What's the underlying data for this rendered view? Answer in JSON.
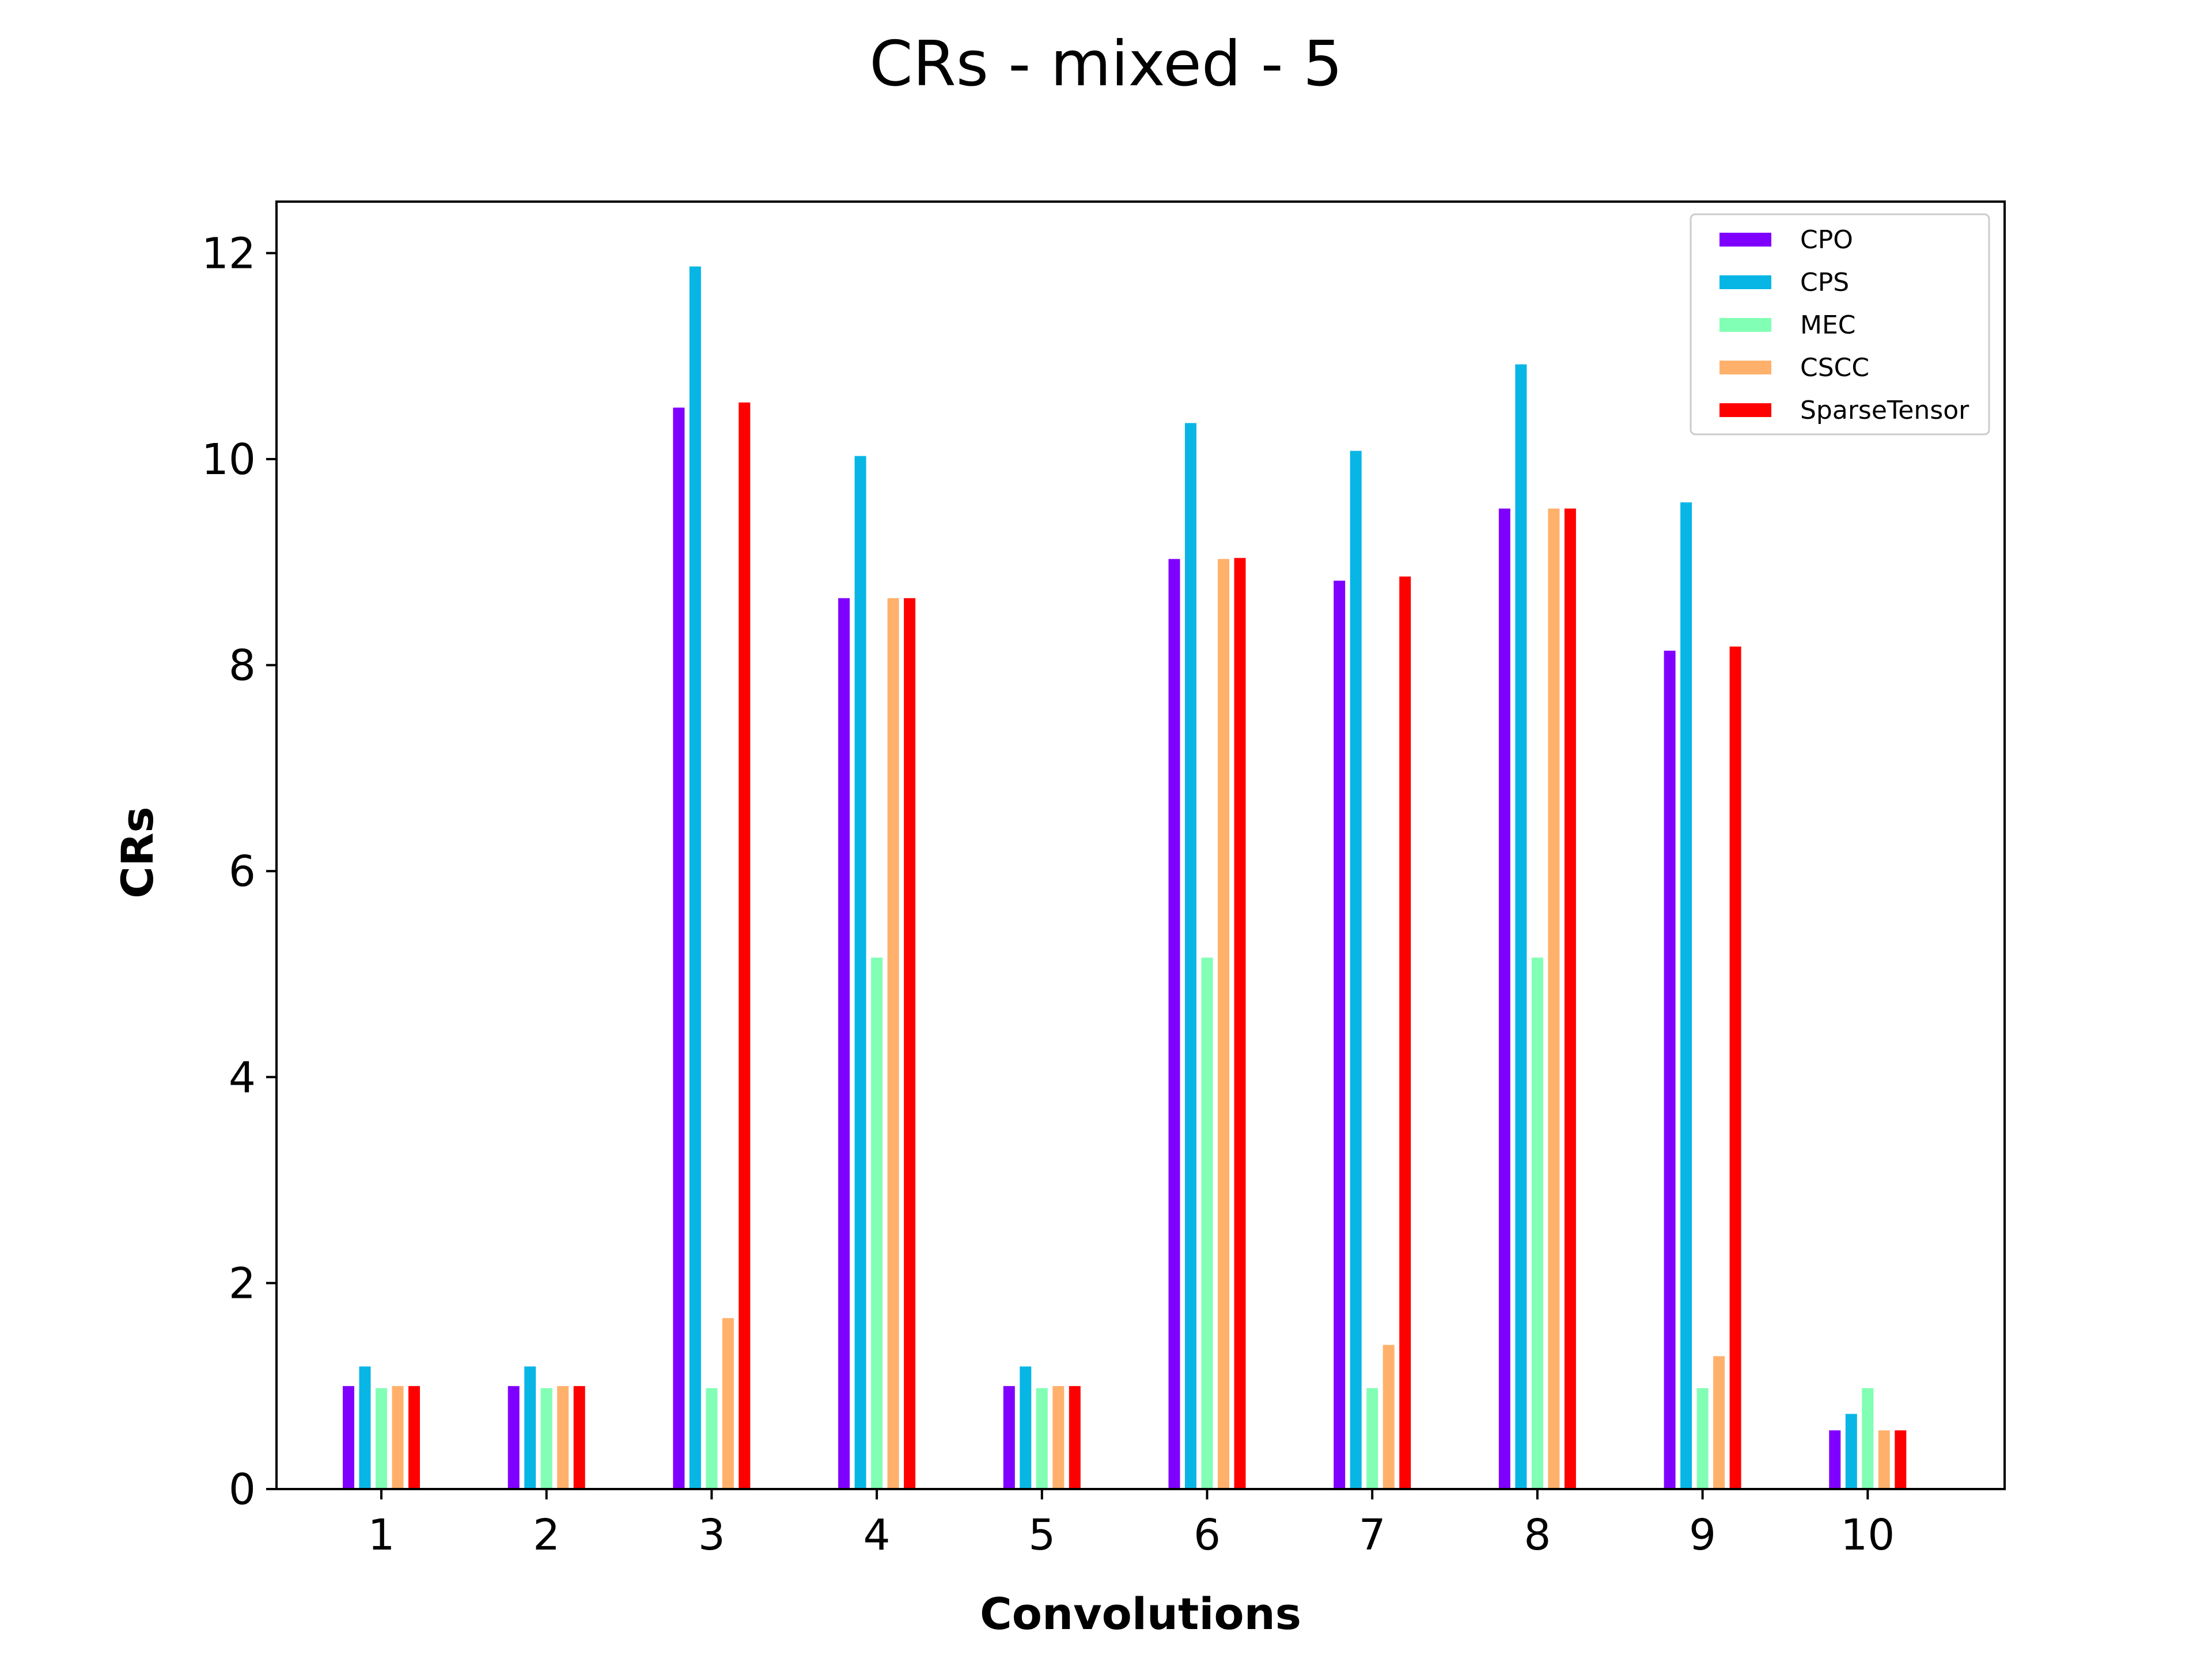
{
  "chart_data": {
    "type": "bar",
    "title": "CRs - mixed - 5",
    "xlabel": "Convolutions",
    "ylabel": "CRs",
    "categories": [
      "1",
      "2",
      "3",
      "4",
      "5",
      "6",
      "7",
      "8",
      "9",
      "10"
    ],
    "ylim": [
      0,
      12.5
    ],
    "yticks": [
      0,
      2,
      4,
      6,
      8,
      10,
      12
    ],
    "grid": false,
    "legend_position": "upper right",
    "series": [
      {
        "name": "CPO",
        "color": "#8000ff",
        "values": [
          1.0,
          1.0,
          10.5,
          8.65,
          1.0,
          9.03,
          8.82,
          9.52,
          8.14,
          0.57
        ]
      },
      {
        "name": "CPS",
        "color": "#08b6e6",
        "values": [
          1.19,
          1.19,
          11.87,
          10.03,
          1.19,
          10.35,
          10.08,
          10.92,
          9.58,
          0.73
        ]
      },
      {
        "name": "MEC",
        "color": "#81ffb4",
        "values": [
          0.98,
          0.98,
          0.98,
          5.16,
          0.98,
          5.16,
          0.98,
          5.16,
          0.98,
          0.98
        ]
      },
      {
        "name": "CSCC",
        "color": "#ffb16b",
        "values": [
          1.0,
          1.0,
          1.66,
          8.65,
          1.0,
          9.03,
          1.4,
          9.52,
          1.29,
          0.57
        ]
      },
      {
        "name": "SparseTensor",
        "color": "#ff0000",
        "values": [
          1.0,
          1.0,
          10.55,
          8.65,
          1.0,
          9.04,
          8.86,
          9.52,
          8.18,
          0.57
        ]
      }
    ]
  }
}
